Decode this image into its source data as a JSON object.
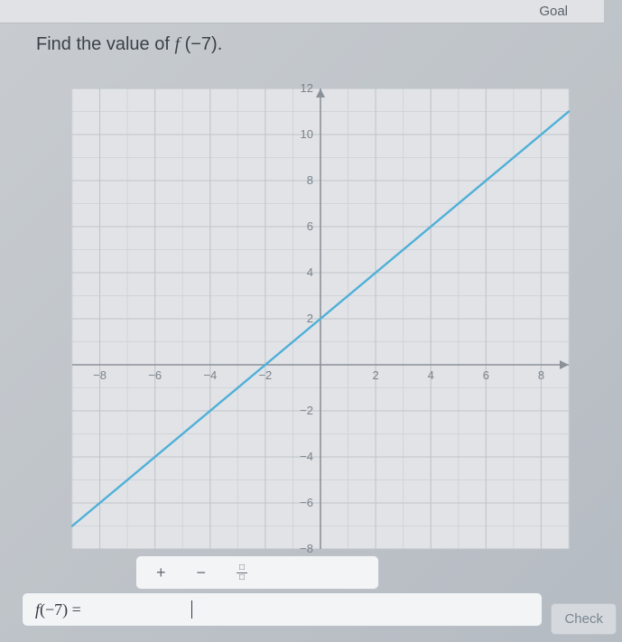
{
  "header": {
    "goal_label": "Goal"
  },
  "prompt": {
    "prefix": "Find the value of ",
    "fn_letter": "f",
    "arg": "(−7)",
    "suffix": "."
  },
  "chart": {
    "type": "line",
    "xlim": [
      -9,
      9
    ],
    "ylim": [
      -8,
      12
    ],
    "xtick_step": 1,
    "ytick_step": 1,
    "xtick_label_step": 2,
    "ytick_label_step": 2,
    "xtick_labels": [
      -8,
      -6,
      -4,
      -2,
      2,
      4,
      6,
      8
    ],
    "ytick_labels": [
      -8,
      -6,
      -4,
      -2,
      2,
      4,
      6,
      8,
      10,
      12
    ],
    "background_color": "#e1e3e7",
    "minor_grid_color": "#d1d4d9",
    "major_grid_color": "#c0c4c9",
    "axis_color": "#8a9199",
    "arrow_color": "#8a9199",
    "tick_label_color": "#7b838b",
    "tick_label_fontsize": 13,
    "line": {
      "points": [
        [
          -9,
          -7
        ],
        [
          9,
          11
        ]
      ],
      "color": "#4fb0d8",
      "width": 2.4
    },
    "y_intercept": 2,
    "slope": 1
  },
  "toolbar": {
    "plus": "+",
    "minus": "−",
    "fraction_top": "□",
    "fraction_bot": "□"
  },
  "answer": {
    "label_fn": "f",
    "label_arg": "(−7) = ",
    "value": ""
  },
  "buttons": {
    "check": "Check"
  }
}
